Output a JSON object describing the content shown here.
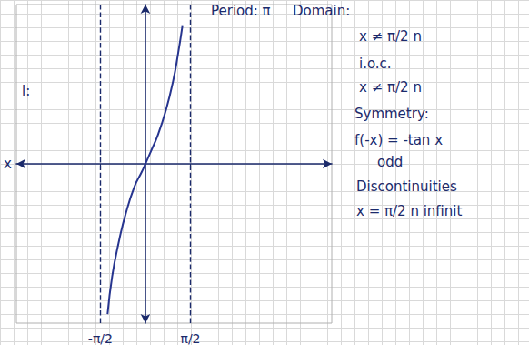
{
  "chart_data": {
    "type": "line",
    "x_label": "x",
    "x": [
      -1.32,
      -1.16,
      -0.94,
      -0.69,
      -0.38,
      -0.13,
      0,
      0.19,
      0.44,
      0.72,
      0.97,
      1.13,
      1.29
    ],
    "values": [
      -5.66,
      -4.25,
      -3.0,
      -1.89,
      -0.85,
      -0.31,
      0,
      0.47,
      1.1,
      2.04,
      3.14,
      4.09,
      5.19
    ],
    "color": "#27358f",
    "line_style": "solid",
    "xlim": [
      -4.5,
      6.5
    ],
    "ylim": [
      -6,
      6
    ],
    "xticks": [
      {
        "value": -1.5708,
        "label": "-π/2"
      },
      {
        "value": 1.5708,
        "label": "π/2"
      }
    ],
    "yticks": [],
    "tick_labels": "x",
    "grid": true,
    "asymptotes": [
      -1.5708,
      1.5708
    ],
    "annotations": [
      "Period: π",
      "Domain:",
      "x ≠ π/2 n",
      "i.o.c.",
      "x ≠ π/2 n",
      "Symmetry:",
      "f(-x) = -tan x",
      "odd",
      "Discontinuities",
      "x = π/2 n infinit",
      "l:"
    ]
  }
}
